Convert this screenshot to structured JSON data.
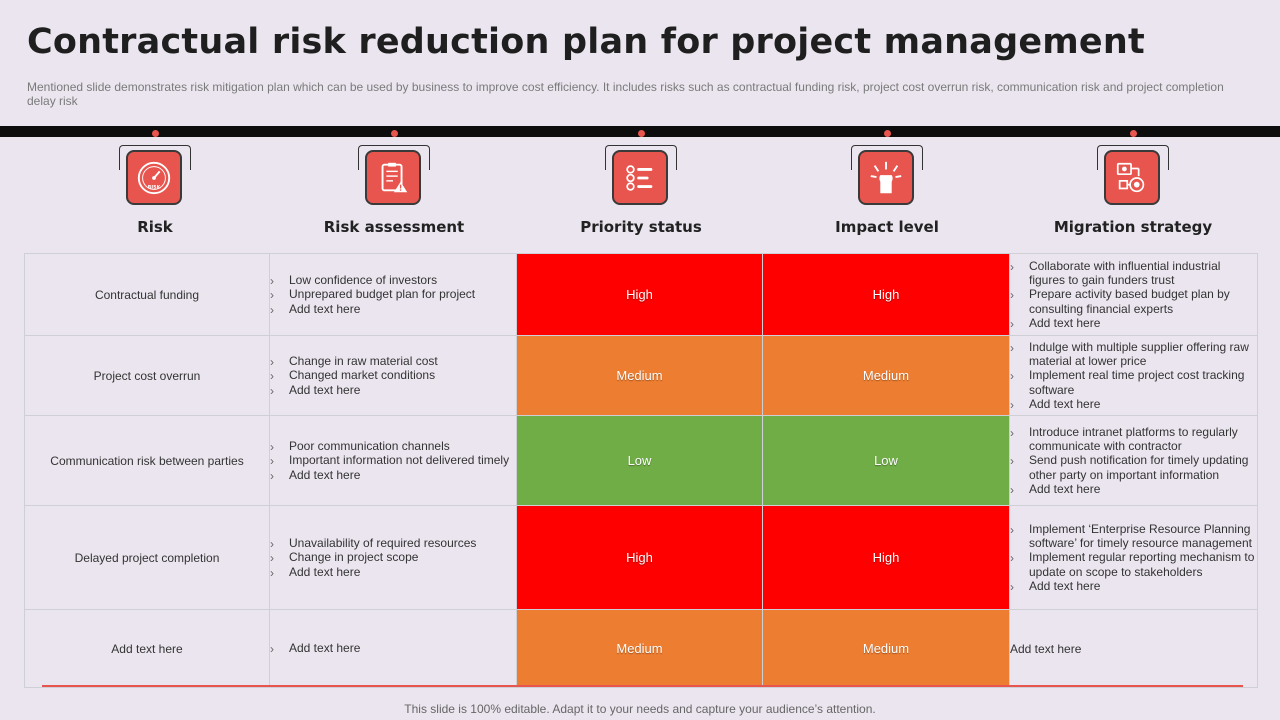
{
  "title": "Contractual risk reduction plan for project management",
  "subtitle": "Mentioned slide demonstrates risk mitigation plan which can be used by business to improve cost efficiency.  It includes risks such as contractual funding risk, project cost overrun risk, communication risk and project completion delay risk",
  "columns": [
    {
      "label": "Risk",
      "icon": "risk-gauge-icon"
    },
    {
      "label": "Risk assessment",
      "icon": "checklist-warning-icon"
    },
    {
      "label": "Priority status",
      "icon": "priority-list-icon"
    },
    {
      "label": "Impact level",
      "icon": "impact-hand-icon"
    },
    {
      "label": "Migration strategy",
      "icon": "strategy-flow-icon"
    }
  ],
  "colors": {
    "high": "#ff0000",
    "medium": "#ed7d31",
    "low": "#70ad47",
    "accent": "#e8554e"
  },
  "rows": [
    {
      "risk": "Contractual funding",
      "assessment": [
        "Low confidence of investors",
        "Unprepared budget plan for project",
        "Add text here"
      ],
      "priority": "High",
      "impact": "High",
      "strategy": [
        "Collaborate with influential industrial figures to gain funders trust",
        "Prepare activity  based budget plan by consulting financial experts",
        "Add text here"
      ]
    },
    {
      "risk": "Project cost overrun",
      "assessment": [
        "Change in raw material cost",
        "Changed market conditions",
        "Add text here"
      ],
      "priority": "Medium",
      "impact": "Medium",
      "strategy": [
        "Indulge with multiple supplier offering raw material at lower price",
        "Implement real time project cost tracking software",
        "Add text here"
      ]
    },
    {
      "risk": "Communication risk between parties",
      "assessment": [
        "Poor communication channels",
        "Important information not delivered timely",
        "Add text here"
      ],
      "priority": "Low",
      "impact": "Low",
      "strategy": [
        "Introduce intranet platforms to regularly communicate with contractor",
        "Send push notification for timely updating other party on important information",
        "Add text here"
      ]
    },
    {
      "risk": "Delayed project completion",
      "assessment": [
        "Unavailability of required resources",
        "Change in project scope",
        "Add text here"
      ],
      "priority": "High",
      "impact": "High",
      "strategy": [
        "Implement ‘Enterprise Resource Planning software’ for timely resource management",
        "Implement regular reporting mechanism to update on scope to stakeholders",
        "Add text here"
      ]
    },
    {
      "risk": "Add text here",
      "assessment": [
        "Add text here"
      ],
      "priority": "Medium",
      "impact": "Medium",
      "strategy_plain": "Add text here"
    }
  ],
  "footer": "This slide is 100% editable. Adapt it to your needs and capture your audience’s attention."
}
